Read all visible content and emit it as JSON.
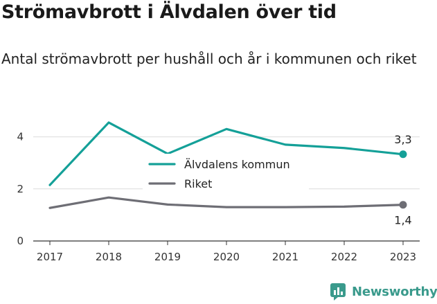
{
  "header": {
    "title": "Strömavbrott i Älvdalen över tid",
    "subtitle": "Antal strömavbrott per hushåll och år i kommunen och riket"
  },
  "brand": {
    "name": "Newsworthy",
    "color": "#3a9a8c"
  },
  "chart_data": {
    "type": "line",
    "x": [
      2017,
      2018,
      2019,
      2020,
      2021,
      2022,
      2023
    ],
    "x_tick_labels": [
      "2017",
      "2018",
      "2019",
      "2020",
      "2021",
      "2022",
      "2023"
    ],
    "ylim": [
      0,
      5
    ],
    "y_ticks": [
      0,
      2,
      4
    ],
    "y_tick_labels": [
      "0",
      "2",
      "4"
    ],
    "grid": true,
    "legend_position": "center",
    "series": [
      {
        "name": "Älvdalens kommun",
        "color": "#14a098",
        "values": [
          2.15,
          4.55,
          3.35,
          4.3,
          3.7,
          3.57,
          3.33
        ],
        "end_label": "3,3"
      },
      {
        "name": "Riket",
        "color": "#6e6e75",
        "values": [
          1.27,
          1.67,
          1.4,
          1.3,
          1.3,
          1.32,
          1.39
        ],
        "end_label": "1,4"
      }
    ]
  }
}
